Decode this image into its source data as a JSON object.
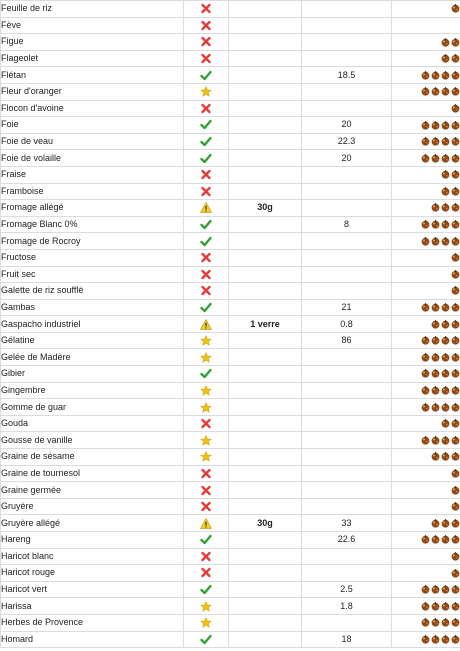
{
  "colors": {
    "check": "#33a133",
    "cross": "#e43b3b",
    "star": "#f2c012",
    "warning": "#f4cf2a"
  },
  "rows": [
    {
      "name": "Feuille de riz",
      "status": "cross",
      "portion": "",
      "value": "",
      "rating": 1
    },
    {
      "name": "Fève",
      "status": "cross",
      "portion": "",
      "value": "",
      "rating": 0
    },
    {
      "name": "Figue",
      "status": "cross",
      "portion": "",
      "value": "",
      "rating": 2
    },
    {
      "name": "Flageolet",
      "status": "cross",
      "portion": "",
      "value": "",
      "rating": 2
    },
    {
      "name": "Flétan",
      "status": "check",
      "portion": "",
      "value": "18.5",
      "rating": 4
    },
    {
      "name": "Fleur d'oranger",
      "status": "star",
      "portion": "",
      "value": "",
      "rating": 4
    },
    {
      "name": "Flocon d'avoine",
      "status": "cross",
      "portion": "",
      "value": "",
      "rating": 1
    },
    {
      "name": "Foie",
      "status": "check",
      "portion": "",
      "value": "20",
      "rating": 4
    },
    {
      "name": "Foie de veau",
      "status": "check",
      "portion": "",
      "value": "22.3",
      "rating": 4
    },
    {
      "name": "Foie de volaille",
      "status": "check",
      "portion": "",
      "value": "20",
      "rating": 4
    },
    {
      "name": "Fraise",
      "status": "cross",
      "portion": "",
      "value": "",
      "rating": 2
    },
    {
      "name": "Framboise",
      "status": "cross",
      "portion": "",
      "value": "",
      "rating": 2
    },
    {
      "name": "Fromage allégé",
      "status": "warning",
      "portion": "30g",
      "value": "",
      "rating": 3
    },
    {
      "name": "Fromage Blanc 0%",
      "status": "check",
      "portion": "",
      "value": "8",
      "rating": 4
    },
    {
      "name": "Fromage de Rocroy",
      "status": "check",
      "portion": "",
      "value": "",
      "rating": 4
    },
    {
      "name": "Fructose",
      "status": "cross",
      "portion": "",
      "value": "",
      "rating": 1
    },
    {
      "name": "Fruit sec",
      "status": "cross",
      "portion": "",
      "value": "",
      "rating": 1
    },
    {
      "name": "Galette de riz soufflé",
      "status": "cross",
      "portion": "",
      "value": "",
      "rating": 1
    },
    {
      "name": "Gambas",
      "status": "check",
      "portion": "",
      "value": "21",
      "rating": 4
    },
    {
      "name": "Gaspacho industriel",
      "status": "warning",
      "portion": "1 verre",
      "value": "0.8",
      "rating": 3
    },
    {
      "name": "Gélatine",
      "status": "star",
      "portion": "",
      "value": "86",
      "rating": 4
    },
    {
      "name": "Gelée de Madère",
      "status": "star",
      "portion": "",
      "value": "",
      "rating": 4
    },
    {
      "name": "Gibier",
      "status": "check",
      "portion": "",
      "value": "",
      "rating": 4
    },
    {
      "name": "Gingembre",
      "status": "star",
      "portion": "",
      "value": "",
      "rating": 4
    },
    {
      "name": "Gomme de guar",
      "status": "star",
      "portion": "",
      "value": "",
      "rating": 4
    },
    {
      "name": "Gouda",
      "status": "cross",
      "portion": "",
      "value": "",
      "rating": 2
    },
    {
      "name": "Gousse de vanille",
      "status": "star",
      "portion": "",
      "value": "",
      "rating": 4
    },
    {
      "name": "Graine de sésame",
      "status": "star",
      "portion": "",
      "value": "",
      "rating": 3
    },
    {
      "name": "Graine de tournesol",
      "status": "cross",
      "portion": "",
      "value": "",
      "rating": 1
    },
    {
      "name": "Graine germée",
      "status": "cross",
      "portion": "",
      "value": "",
      "rating": 1
    },
    {
      "name": "Gruyère",
      "status": "cross",
      "portion": "",
      "value": "",
      "rating": 1
    },
    {
      "name": "Gruyère allégé",
      "status": "warning",
      "portion": "30g",
      "value": "33",
      "rating": 3
    },
    {
      "name": "Hareng",
      "status": "check",
      "portion": "",
      "value": "22.6",
      "rating": 4
    },
    {
      "name": "Haricot blanc",
      "status": "cross",
      "portion": "",
      "value": "",
      "rating": 1
    },
    {
      "name": "Haricot rouge",
      "status": "cross",
      "portion": "",
      "value": "",
      "rating": 1
    },
    {
      "name": "Haricot vert",
      "status": "check",
      "portion": "",
      "value": "2.5",
      "rating": 4
    },
    {
      "name": "Harissa",
      "status": "star",
      "portion": "",
      "value": "1.8",
      "rating": 4
    },
    {
      "name": "Herbes de Provence",
      "status": "star",
      "portion": "",
      "value": "",
      "rating": 4
    },
    {
      "name": "Homard",
      "status": "check",
      "portion": "",
      "value": "18",
      "rating": 4
    }
  ]
}
